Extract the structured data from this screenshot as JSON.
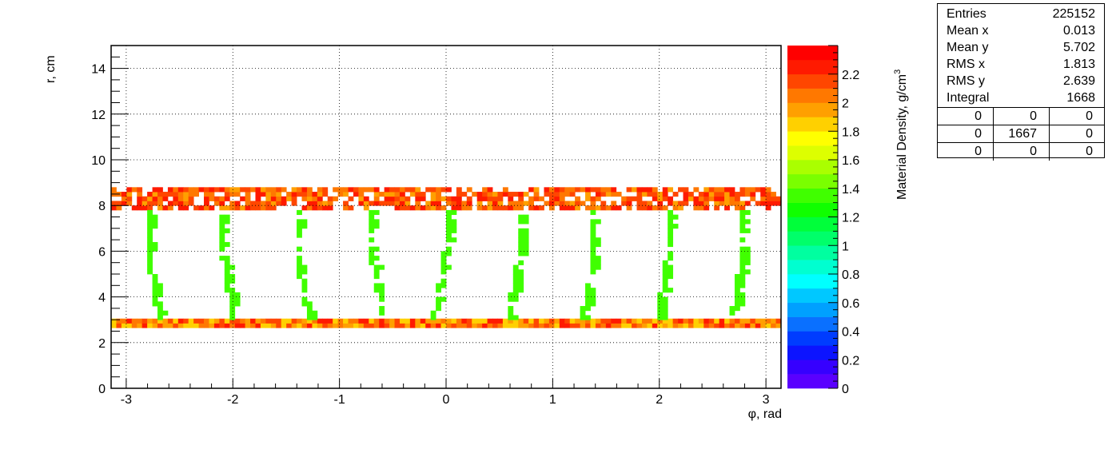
{
  "chart_data": {
    "type": "heatmap",
    "title": "",
    "xlabel": "φ, rad",
    "ylabel": "r, cm",
    "zlabel": "Material Density, g/cm",
    "zlabel_sup": "3",
    "xlim": [
      -3.1416,
      3.1416
    ],
    "ylim": [
      0,
      15
    ],
    "zlim": [
      0,
      2.4
    ],
    "x_ticks": [
      -3,
      -2,
      -1,
      0,
      1,
      2,
      3
    ],
    "x_tick_labels": [
      "-3",
      "-2",
      "-1",
      "0",
      "1",
      "2",
      "3"
    ],
    "y_ticks": [
      0,
      2,
      4,
      6,
      8,
      10,
      12,
      14
    ],
    "y_tick_labels": [
      "0",
      "2",
      "4",
      "6",
      "8",
      "10",
      "12",
      "14"
    ],
    "z_ticks": [
      0,
      0.2,
      0.4,
      0.6,
      0.8,
      1,
      1.2,
      1.4,
      1.6,
      1.8,
      2,
      2.2
    ],
    "z_tick_labels": [
      "0",
      "0.2",
      "0.4",
      "0.6",
      "0.8",
      "1",
      "1.2",
      "1.4",
      "1.6",
      "1.8",
      "2",
      "2.2"
    ],
    "grid": true,
    "palette": [
      "#5a00ff",
      "#3600ff",
      "#0c14ff",
      "#003cff",
      "#0a70ff",
      "#00a0ff",
      "#00c8ff",
      "#00ffff",
      "#00ffd0",
      "#00ffa0",
      "#00ff6a",
      "#00ff3a",
      "#10ff00",
      "#40ff00",
      "#7aff00",
      "#aaff00",
      "#ddff00",
      "#ffff00",
      "#ffd000",
      "#ffa000",
      "#ff7800",
      "#ff4600",
      "#ff1a00",
      "#ff0000"
    ],
    "n_x_bins": 130,
    "bin_width_r": 0.2,
    "structure": {
      "outer_ring_r": [
        7.8,
        8.7
      ],
      "inner_ring_r": [
        2.65,
        3.0
      ],
      "ribs_count": 9,
      "rib_r_range": [
        3.0,
        7.8
      ],
      "rib_density": 1.35,
      "ring_density_range": [
        1.8,
        2.3
      ]
    }
  },
  "stats": [
    {
      "label": "Entries",
      "value": "225152"
    },
    {
      "label": "Mean x",
      "value": "0.013"
    },
    {
      "label": "Mean y",
      "value": "5.702"
    },
    {
      "label": "RMS x",
      "value": "1.813"
    },
    {
      "label": "RMS y",
      "value": "2.639"
    },
    {
      "label": "Integral",
      "value": "1668"
    }
  ],
  "overflow_grid": [
    [
      "0",
      "0",
      "0"
    ],
    [
      "0",
      "1667",
      "0"
    ],
    [
      "0",
      "0",
      "0"
    ]
  ]
}
